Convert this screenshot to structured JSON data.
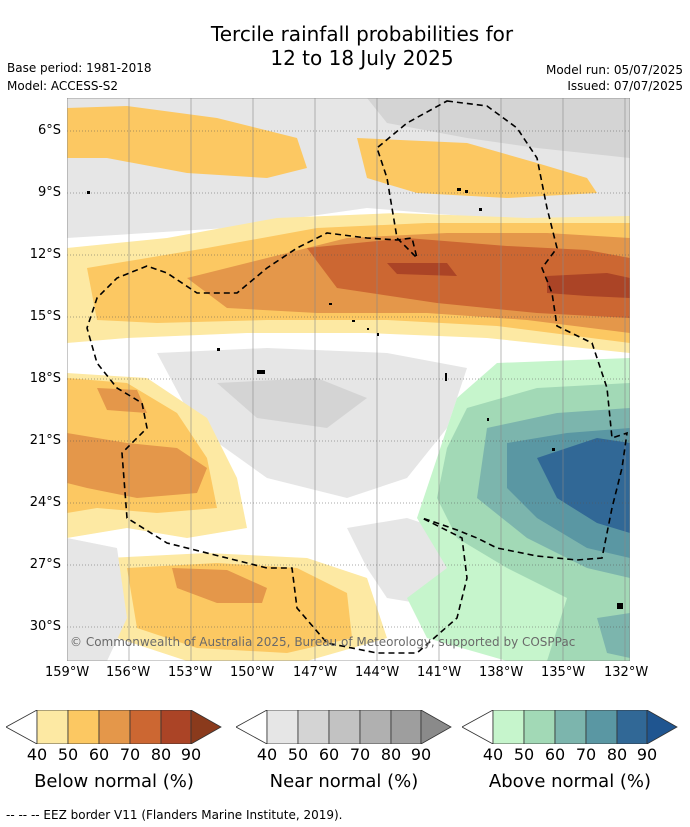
{
  "title_line1": "Tercile rainfall probabilities for",
  "title_line2": "12 to 18 July 2025",
  "base_period": "Base period: 1981-2018",
  "model": "Model: ACCESS-S2",
  "model_run": "Model run: 05/07/2025",
  "issued": "Issued: 07/07/2025",
  "copyright": "© Commonwealth of Australia 2025, Bureau of Meteorology, supported by COSPPac",
  "lon_labels": [
    "159°W",
    "156°W",
    "153°W",
    "150°W",
    "147°W",
    "144°W",
    "141°W",
    "138°W",
    "135°W",
    "132°W"
  ],
  "lat_labels": [
    "6°S",
    "9°S",
    "12°S",
    "15°S",
    "18°S",
    "21°S",
    "24°S",
    "27°S",
    "30°S"
  ],
  "colorbars": [
    {
      "title": "Below normal (%)",
      "ticks": [
        "40",
        "50",
        "60",
        "70",
        "80",
        "90"
      ],
      "colors": [
        "#fde9a3",
        "#fcc862",
        "#e4974a",
        "#cc6732",
        "#ab4426",
        "#ab4426"
      ]
    },
    {
      "title": "Near normal (%)",
      "ticks": [
        "40",
        "50",
        "60",
        "70",
        "80",
        "90"
      ],
      "colors": [
        "#e6e6e6",
        "#d4d4d4",
        "#c2c2c2",
        "#b0b0b0",
        "#9e9e9e",
        "#8a8a8a"
      ]
    },
    {
      "title": "Above normal (%)",
      "ticks": [
        "40",
        "50",
        "60",
        "70",
        "80",
        "90"
      ],
      "colors": [
        "#c6f5cc",
        "#a2d9b6",
        "#7cb5ad",
        "#5a97a3",
        "#316896",
        "#1f5590"
      ]
    }
  ],
  "eez_note": "-- -- -- EEZ border V11 (Flanders Marine Institute, 2019)."
}
